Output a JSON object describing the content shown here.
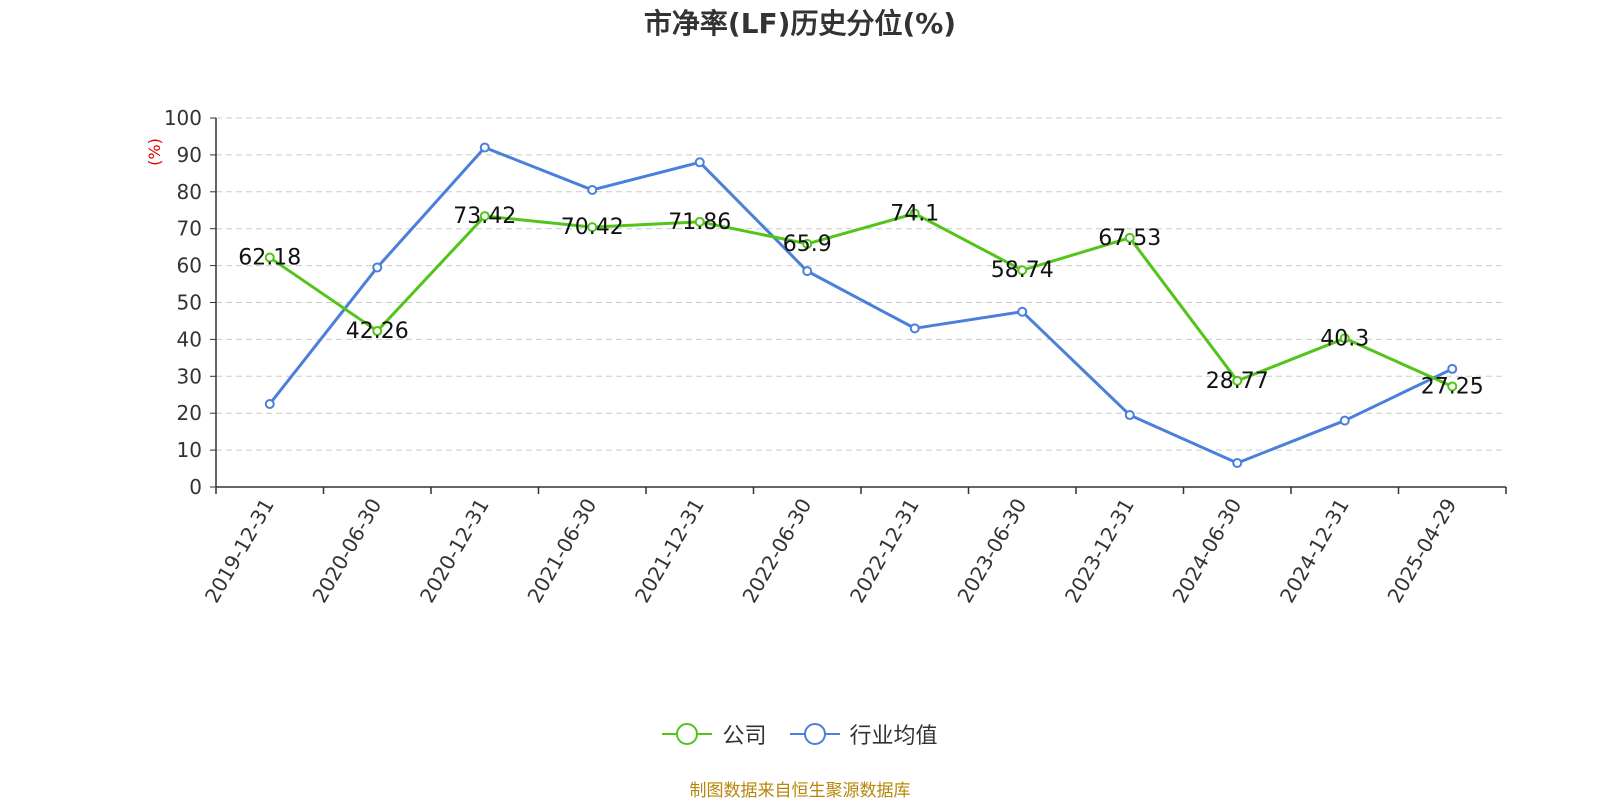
{
  "chart_data": {
    "type": "line",
    "title": "市净率(LF)历史分位(%)",
    "ylabel": "(%)",
    "ylim": [
      0,
      100
    ],
    "yticks": [
      0,
      10,
      20,
      30,
      40,
      50,
      60,
      70,
      80,
      90,
      100
    ],
    "grid": true,
    "legend_position": "bottom",
    "categories": [
      "2019-12-31",
      "2020-06-30",
      "2020-12-31",
      "2021-06-30",
      "2021-12-31",
      "2022-06-30",
      "2022-12-31",
      "2023-06-30",
      "2023-12-31",
      "2024-06-30",
      "2024-12-31",
      "2025-04-29"
    ],
    "series": [
      {
        "name": "公司",
        "color": "#52c41a",
        "values": [
          62.18,
          42.26,
          73.42,
          70.42,
          71.86,
          65.9,
          74.1,
          58.74,
          67.53,
          28.77,
          40.3,
          27.25
        ],
        "labels": [
          "62.18",
          "42.26",
          "73.42",
          "70.42",
          "71.86",
          "65.9",
          "74.1",
          "58.74",
          "67.53",
          "28.77",
          "40.3",
          "27.25"
        ]
      },
      {
        "name": "行业均值",
        "color": "#4a7fdc",
        "values": [
          22.5,
          59.5,
          92,
          80.5,
          88,
          58.5,
          43,
          47.5,
          19.5,
          6.5,
          18,
          32
        ]
      }
    ],
    "source": "制图数据来自恒生聚源数据库"
  }
}
